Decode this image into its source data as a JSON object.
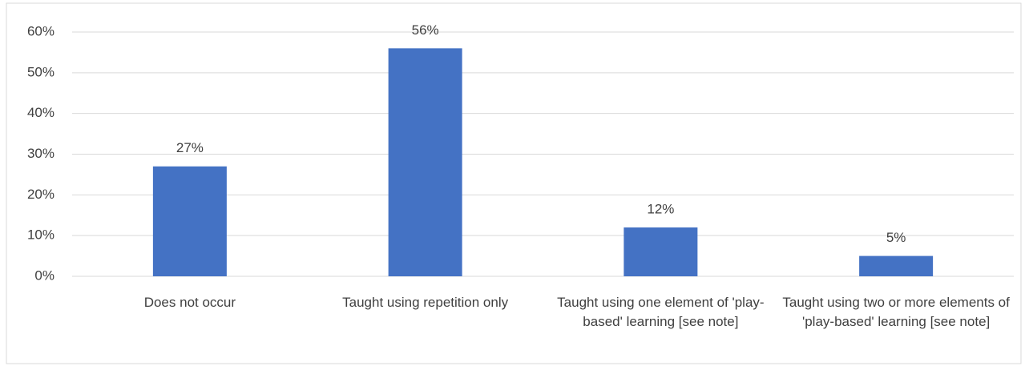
{
  "chart_data": {
    "type": "bar",
    "categories": [
      "Does not occur",
      "Taught using repetition only",
      "Taught using one element of 'play-based' learning [see note]",
      "Taught using two or more elements of 'play-based' learning [see note]"
    ],
    "values": [
      27,
      56,
      12,
      5
    ],
    "value_labels": [
      "27%",
      "56%",
      "12%",
      "5%"
    ],
    "color": "#4472c4",
    "ylim": [
      0,
      60
    ],
    "yticks": [
      {
        "value": 0,
        "label": "0%"
      },
      {
        "value": 10,
        "label": "10%"
      },
      {
        "value": 20,
        "label": "20%"
      },
      {
        "value": 30,
        "label": "30%"
      },
      {
        "value": 40,
        "label": "40%"
      },
      {
        "value": 50,
        "label": "50%"
      },
      {
        "value": 60,
        "label": "60%"
      }
    ],
    "grid": true
  }
}
